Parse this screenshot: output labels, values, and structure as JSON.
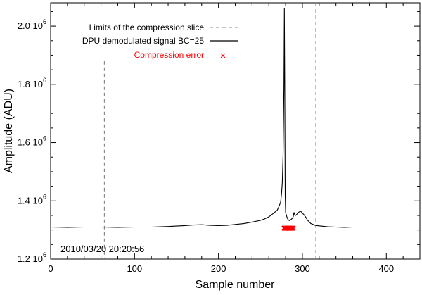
{
  "chart_data": {
    "type": "line",
    "title": "",
    "xlabel": "Sample number",
    "ylabel": "Amplitude (ADU)",
    "xlim": [
      0,
      440
    ],
    "ylim": [
      1200000,
      2080000
    ],
    "x_ticks": [
      0,
      100,
      200,
      300,
      400
    ],
    "x_tick_labels": [
      "0",
      "100",
      "200",
      "300",
      "400"
    ],
    "y_ticks": [
      1200000,
      1400000,
      1600000,
      1800000,
      2000000
    ],
    "y_tick_labels": [
      {
        "base": "1.2 10",
        "exp": "6"
      },
      {
        "base": "1.4 10",
        "exp": "6"
      },
      {
        "base": "1.6 10",
        "exp": "6"
      },
      {
        "base": "1.8 10",
        "exp": "6"
      },
      {
        "base": "2.0 10",
        "exp": "6"
      }
    ],
    "timestamp": "2010/03/20 20:20:56",
    "legend": {
      "placement": "top-right",
      "entries": [
        {
          "label": "Limits of the compression slice",
          "style": "dashed",
          "color": "#888888"
        },
        {
          "label": "DPU demodulated signal BC=25",
          "style": "solid",
          "color": "#000000"
        },
        {
          "label": "Compression error",
          "style": "marker-x",
          "color": "#ff0000"
        }
      ]
    },
    "compression_slice_limits": [
      64,
      316
    ],
    "signal": {
      "name": "DPU demodulated signal BC=25",
      "color": "#000000",
      "x": [
        0,
        20,
        40,
        60,
        80,
        100,
        120,
        140,
        160,
        170,
        180,
        190,
        200,
        210,
        220,
        230,
        240,
        250,
        255,
        260,
        265,
        268,
        270,
        272,
        274,
        275,
        276,
        277,
        278,
        278.5,
        279,
        279.5,
        280,
        281,
        282,
        283,
        284,
        285,
        286,
        288,
        289,
        290,
        291,
        292,
        294,
        296,
        298,
        300,
        302,
        304,
        306,
        308,
        310,
        312,
        315,
        320,
        330,
        340,
        350,
        360,
        380,
        400,
        420,
        440
      ],
      "y": [
        1310000,
        1309000,
        1310000,
        1310000,
        1309000,
        1310000,
        1310000,
        1312000,
        1315000,
        1317000,
        1318000,
        1316000,
        1315000,
        1316000,
        1319000,
        1322000,
        1327000,
        1333000,
        1338000,
        1345000,
        1356000,
        1363000,
        1368000,
        1380000,
        1395000,
        1420000,
        1460000,
        1560000,
        1790000,
        2060000,
        1780000,
        1420000,
        1360000,
        1350000,
        1340000,
        1336000,
        1333000,
        1332000,
        1335000,
        1340000,
        1345000,
        1360000,
        1352000,
        1350000,
        1356000,
        1362000,
        1364000,
        1358000,
        1352000,
        1344000,
        1334000,
        1328000,
        1322000,
        1320000,
        1316000,
        1314000,
        1311000,
        1310000,
        1309000,
        1310000,
        1310000,
        1310000,
        1310000,
        1310000
      ]
    },
    "compression_errors": {
      "name": "Compression error",
      "color": "#ff0000",
      "x": [
        278,
        279,
        280,
        281,
        282,
        283,
        284,
        285,
        286,
        287,
        288,
        289
      ],
      "y": [
        1306000,
        1306000,
        1306000,
        1306000,
        1306000,
        1306000,
        1306000,
        1306000,
        1306000,
        1306000,
        1306000,
        1306000
      ]
    }
  }
}
